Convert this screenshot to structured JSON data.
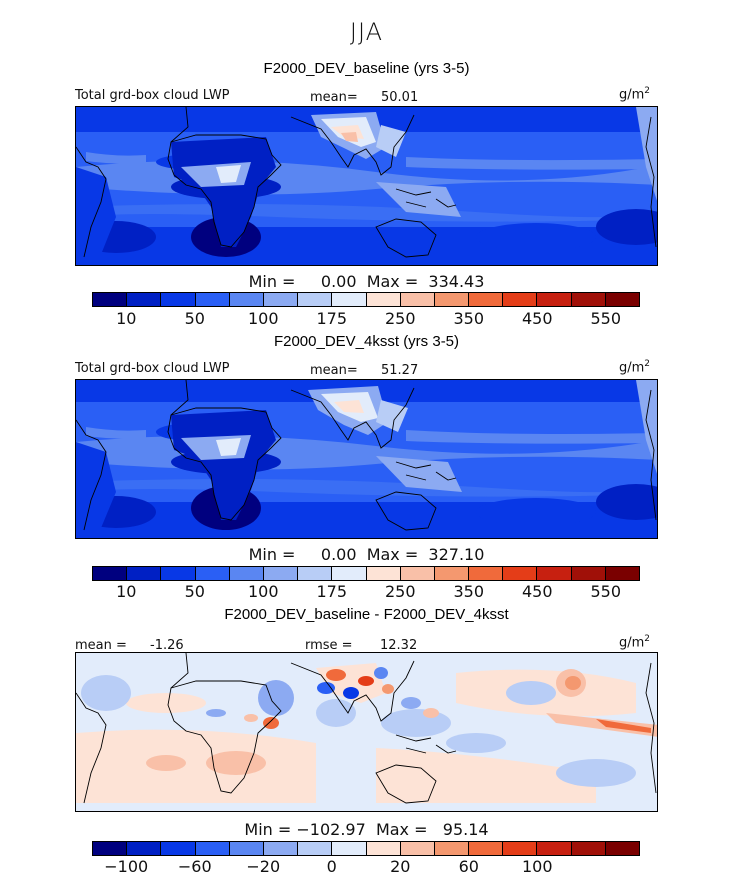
{
  "season": "JJA",
  "palettes": {
    "abs": [
      "#00007f",
      "#0020c4",
      "#0838e6",
      "#2a5ff5",
      "#5a86f2",
      "#8caaf2",
      "#b8cdf6",
      "#e2ecfb",
      "#fde3d6",
      "#f9c0a8",
      "#f4986f",
      "#f06a3b",
      "#e43d18",
      "#c72010",
      "#a01008",
      "#7a0000"
    ],
    "diff": [
      "#00007f",
      "#0020c4",
      "#0838e6",
      "#2a5ff5",
      "#5a86f2",
      "#8caaf2",
      "#b8cdf6",
      "#e2ecfb",
      "#fde3d6",
      "#f9c0a8",
      "#f4986f",
      "#f06a3b",
      "#e43d18",
      "#c72010",
      "#a01008",
      "#7a0000"
    ]
  },
  "panels": [
    {
      "title": "F2000_DEV_baseline (yrs 3-5)",
      "variable": "Total grd-box cloud LWP",
      "mean_label": "mean=",
      "mean_value": "50.01",
      "units": "g/m",
      "units_sup": "2",
      "minmax": "Min =     0.00  Max =  334.43",
      "ticks": [
        "10",
        "50",
        "100",
        "175",
        "250",
        "350",
        "450",
        "550"
      ],
      "palette": "abs"
    },
    {
      "title": "F2000_DEV_4ksst (yrs 3-5)",
      "variable": "Total grd-box cloud LWP",
      "mean_label": "mean=",
      "mean_value": "51.27",
      "units": "g/m",
      "units_sup": "2",
      "minmax": "Min =     0.00  Max =  327.10",
      "ticks": [
        "10",
        "50",
        "100",
        "175",
        "250",
        "350",
        "450",
        "550"
      ],
      "palette": "abs"
    },
    {
      "title": "F2000_DEV_baseline - F2000_DEV_4ksst",
      "mean_label": "mean =",
      "mean_value": "-1.26",
      "rmse_label": "rmse =",
      "rmse_value": "12.32",
      "units": "g/m",
      "units_sup": "2",
      "minmax": "Min = −102.97  Max =   95.14",
      "ticks": [
        "−100",
        "−60",
        "−20",
        "0",
        "20",
        "60",
        "100"
      ],
      "palette": "diff"
    }
  ]
}
